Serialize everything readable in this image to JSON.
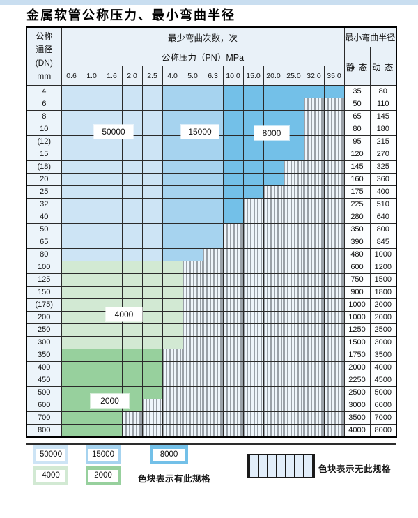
{
  "page": {
    "title": "金属软管公称压力、最小弯曲半径"
  },
  "colors": {
    "c50000": "#cde4f5",
    "c15000": "#a6d3ef",
    "c8000": "#73c0e8",
    "c4000": "#d2e9d3",
    "c2000": "#97d09d"
  },
  "table": {
    "header": {
      "dn_lines": [
        "公称",
        "通径",
        "(DN)",
        "mm"
      ],
      "cycles_title": "最少弯曲次数，次",
      "pressure_title": "公称压力（PN）MPa",
      "radius_title": "最小弯曲半径",
      "static_label": "静 态",
      "dynamic_label": "动 态",
      "pressures": [
        "0.6",
        "1.0",
        "1.6",
        "2.0",
        "2.5",
        "4.0",
        "5.0",
        "6.3",
        "10.0",
        "15.0",
        "20.0",
        "25.0",
        "32.0",
        "35.0"
      ]
    },
    "rows": [
      {
        "dn": "4",
        "cycles": [
          50000,
          50000,
          50000,
          50000,
          50000,
          15000,
          15000,
          15000,
          8000,
          8000,
          8000,
          8000,
          8000,
          8000
        ],
        "static": "35",
        "dynamic": "80"
      },
      {
        "dn": "6",
        "cycles": [
          50000,
          50000,
          50000,
          50000,
          50000,
          15000,
          15000,
          15000,
          8000,
          8000,
          8000,
          8000,
          null,
          null
        ],
        "static": "50",
        "dynamic": "110"
      },
      {
        "dn": "8",
        "cycles": [
          50000,
          50000,
          50000,
          50000,
          50000,
          15000,
          15000,
          15000,
          8000,
          8000,
          8000,
          8000,
          null,
          null
        ],
        "static": "65",
        "dynamic": "145"
      },
      {
        "dn": "10",
        "cycles": [
          50000,
          50000,
          50000,
          50000,
          50000,
          15000,
          15000,
          15000,
          8000,
          8000,
          8000,
          8000,
          null,
          null
        ],
        "static": "80",
        "dynamic": "180"
      },
      {
        "dn": "(12)",
        "cycles": [
          50000,
          50000,
          50000,
          50000,
          50000,
          15000,
          15000,
          15000,
          8000,
          8000,
          8000,
          8000,
          null,
          null
        ],
        "static": "95",
        "dynamic": "215"
      },
      {
        "dn": "15",
        "cycles": [
          50000,
          50000,
          50000,
          50000,
          50000,
          15000,
          15000,
          15000,
          8000,
          8000,
          8000,
          8000,
          null,
          null
        ],
        "static": "120",
        "dynamic": "270"
      },
      {
        "dn": "(18)",
        "cycles": [
          50000,
          50000,
          50000,
          50000,
          50000,
          15000,
          15000,
          15000,
          8000,
          8000,
          8000,
          null,
          null,
          null
        ],
        "static": "145",
        "dynamic": "325"
      },
      {
        "dn": "20",
        "cycles": [
          50000,
          50000,
          50000,
          50000,
          50000,
          15000,
          15000,
          15000,
          8000,
          8000,
          8000,
          null,
          null,
          null
        ],
        "static": "160",
        "dynamic": "360"
      },
      {
        "dn": "25",
        "cycles": [
          50000,
          50000,
          50000,
          50000,
          50000,
          15000,
          15000,
          15000,
          8000,
          8000,
          null,
          null,
          null,
          null
        ],
        "static": "175",
        "dynamic": "400"
      },
      {
        "dn": "32",
        "cycles": [
          50000,
          50000,
          50000,
          50000,
          50000,
          15000,
          15000,
          15000,
          8000,
          null,
          null,
          null,
          null,
          null
        ],
        "static": "225",
        "dynamic": "510"
      },
      {
        "dn": "40",
        "cycles": [
          50000,
          50000,
          50000,
          50000,
          50000,
          15000,
          15000,
          15000,
          8000,
          null,
          null,
          null,
          null,
          null
        ],
        "static": "280",
        "dynamic": "640"
      },
      {
        "dn": "50",
        "cycles": [
          50000,
          50000,
          50000,
          50000,
          50000,
          15000,
          15000,
          15000,
          null,
          null,
          null,
          null,
          null,
          null
        ],
        "static": "350",
        "dynamic": "800"
      },
      {
        "dn": "65",
        "cycles": [
          50000,
          50000,
          50000,
          50000,
          50000,
          15000,
          15000,
          15000,
          null,
          null,
          null,
          null,
          null,
          null
        ],
        "static": "390",
        "dynamic": "845"
      },
      {
        "dn": "80",
        "cycles": [
          50000,
          50000,
          50000,
          50000,
          50000,
          15000,
          15000,
          null,
          null,
          null,
          null,
          null,
          null,
          null
        ],
        "static": "480",
        "dynamic": "1000"
      },
      {
        "dn": "100",
        "cycles": [
          4000,
          4000,
          4000,
          4000,
          4000,
          4000,
          null,
          null,
          null,
          null,
          null,
          null,
          null,
          null
        ],
        "static": "600",
        "dynamic": "1200"
      },
      {
        "dn": "125",
        "cycles": [
          4000,
          4000,
          4000,
          4000,
          4000,
          4000,
          null,
          null,
          null,
          null,
          null,
          null,
          null,
          null
        ],
        "static": "750",
        "dynamic": "1500"
      },
      {
        "dn": "150",
        "cycles": [
          4000,
          4000,
          4000,
          4000,
          4000,
          4000,
          null,
          null,
          null,
          null,
          null,
          null,
          null,
          null
        ],
        "static": "900",
        "dynamic": "1800"
      },
      {
        "dn": "(175)",
        "cycles": [
          4000,
          4000,
          4000,
          4000,
          4000,
          4000,
          null,
          null,
          null,
          null,
          null,
          null,
          null,
          null
        ],
        "static": "1000",
        "dynamic": "2000"
      },
      {
        "dn": "200",
        "cycles": [
          4000,
          4000,
          4000,
          4000,
          4000,
          4000,
          null,
          null,
          null,
          null,
          null,
          null,
          null,
          null
        ],
        "static": "1000",
        "dynamic": "2000"
      },
      {
        "dn": "250",
        "cycles": [
          4000,
          4000,
          4000,
          4000,
          4000,
          4000,
          null,
          null,
          null,
          null,
          null,
          null,
          null,
          null
        ],
        "static": "1250",
        "dynamic": "2500"
      },
      {
        "dn": "300",
        "cycles": [
          4000,
          4000,
          4000,
          4000,
          4000,
          4000,
          null,
          null,
          null,
          null,
          null,
          null,
          null,
          null
        ],
        "static": "1500",
        "dynamic": "3000"
      },
      {
        "dn": "350",
        "cycles": [
          2000,
          2000,
          2000,
          2000,
          2000,
          null,
          null,
          null,
          null,
          null,
          null,
          null,
          null,
          null
        ],
        "static": "1750",
        "dynamic": "3500"
      },
      {
        "dn": "400",
        "cycles": [
          2000,
          2000,
          2000,
          2000,
          2000,
          null,
          null,
          null,
          null,
          null,
          null,
          null,
          null,
          null
        ],
        "static": "2000",
        "dynamic": "4000"
      },
      {
        "dn": "450",
        "cycles": [
          2000,
          2000,
          2000,
          2000,
          2000,
          null,
          null,
          null,
          null,
          null,
          null,
          null,
          null,
          null
        ],
        "static": "2250",
        "dynamic": "4500"
      },
      {
        "dn": "500",
        "cycles": [
          2000,
          2000,
          2000,
          2000,
          2000,
          null,
          null,
          null,
          null,
          null,
          null,
          null,
          null,
          null
        ],
        "static": "2500",
        "dynamic": "5000"
      },
      {
        "dn": "600",
        "cycles": [
          2000,
          2000,
          2000,
          2000,
          null,
          null,
          null,
          null,
          null,
          null,
          null,
          null,
          null,
          null
        ],
        "static": "3000",
        "dynamic": "6000"
      },
      {
        "dn": "700",
        "cycles": [
          2000,
          2000,
          2000,
          null,
          null,
          null,
          null,
          null,
          null,
          null,
          null,
          null,
          null,
          null
        ],
        "static": "3500",
        "dynamic": "7000"
      },
      {
        "dn": "800",
        "cycles": [
          2000,
          2000,
          2000,
          null,
          null,
          null,
          null,
          null,
          null,
          null,
          null,
          null,
          null,
          null
        ],
        "static": "4000",
        "dynamic": "8000"
      }
    ]
  },
  "overlay_labels": [
    "50000",
    "15000",
    "8000",
    "4000",
    "2000"
  ],
  "legend": {
    "items": [
      {
        "value": "50000"
      },
      {
        "value": "15000"
      },
      {
        "value": "8000"
      },
      {
        "value": "4000"
      },
      {
        "value": "2000"
      }
    ],
    "has_spec_note": "色块表示有此规格",
    "no_spec_note": "色块表示无此规格"
  }
}
